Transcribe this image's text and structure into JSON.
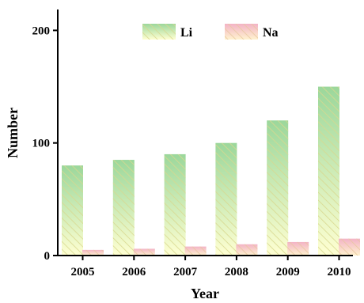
{
  "chart_data": {
    "type": "bar",
    "categories": [
      "2005",
      "2006",
      "2007",
      "2008",
      "2009",
      "2010"
    ],
    "series": [
      {
        "name": "Li",
        "values": [
          80,
          85,
          90,
          100,
          120,
          150
        ]
      },
      {
        "name": "Na",
        "values": [
          5,
          6,
          8,
          10,
          12,
          15
        ]
      }
    ],
    "xlabel": "Year",
    "ylabel": "Number",
    "ylim": [
      0,
      220
    ],
    "yticks": [
      0,
      100,
      200
    ],
    "legend": "top-center",
    "grid": false,
    "colors": {
      "li_top": "#9bd79b",
      "li_bottom": "#ffffd2",
      "li_hatch": "#d8d890",
      "na_top": "#f3b3c6",
      "na_bottom": "#fff3cf",
      "na_hatch": "#e8c8a0"
    }
  }
}
